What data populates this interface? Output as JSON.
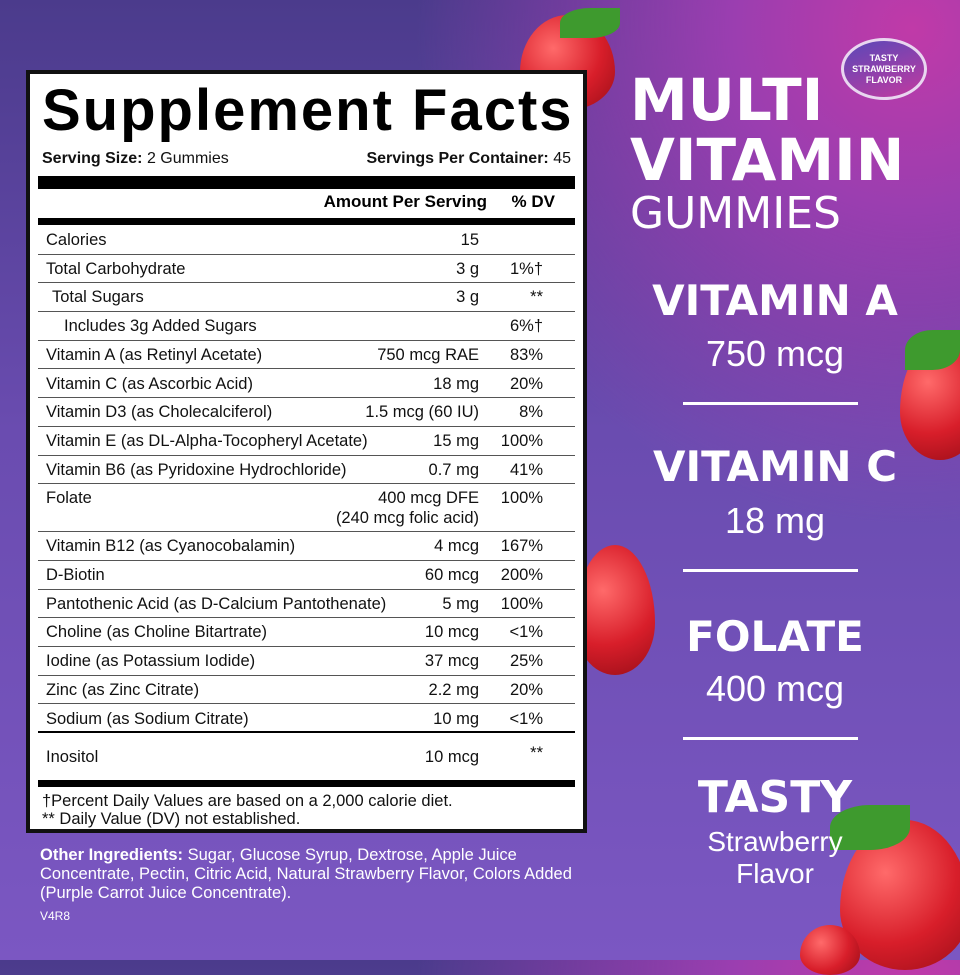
{
  "label": {
    "title": "Supplement Facts",
    "serving_size_label": "Serving Size:",
    "serving_size": "2 Gummies",
    "servings_label": "Servings Per Container:",
    "servings": "45",
    "col_amount": "Amount Per Serving",
    "col_dv": "% DV",
    "rows": [
      {
        "name": "Calories",
        "amount": "15",
        "dv": ""
      },
      {
        "name": "Total Carbohydrate",
        "amount": "3 g",
        "dv": "1%†"
      },
      {
        "name": "Total Sugars",
        "amount": "3 g",
        "dv": "**"
      },
      {
        "name": "Includes 3g Added Sugars",
        "amount": "",
        "dv": "6%†"
      },
      {
        "name": "Vitamin A (as Retinyl Acetate)",
        "amount": "750 mcg RAE",
        "dv": "83%"
      },
      {
        "name": "Vitamin C (as Ascorbic Acid)",
        "amount": "18 mg",
        "dv": "20%"
      },
      {
        "name": "Vitamin D3 (as Cholecalciferol)",
        "amount": "1.5 mcg (60 IU)",
        "dv": "8%"
      },
      {
        "name": "Vitamin E (as DL-Alpha-Tocopheryl Acetate)",
        "amount": "15 mg",
        "dv": "100%"
      },
      {
        "name": "Vitamin B6 (as Pyridoxine Hydrochloride)",
        "amount": "0.7 mg",
        "dv": "41%"
      },
      {
        "name": "Folate",
        "amount": "400 mcg DFE",
        "amount2": "(240 mcg folic acid)",
        "dv": "100%"
      },
      {
        "name": "Vitamin B12 (as Cyanocobalamin)",
        "amount": "4 mcg",
        "dv": "167%"
      },
      {
        "name": "D-Biotin",
        "amount": "60 mcg",
        "dv": "200%"
      },
      {
        "name": "Pantothenic Acid (as D-Calcium Pantothenate)",
        "amount": "5 mg",
        "dv": "100%"
      },
      {
        "name": "Choline (as Choline Bitartrate)",
        "amount": "10 mcg",
        "dv": "<1%"
      },
      {
        "name": "Iodine (as Potassium Iodide)",
        "amount": "37 mcg",
        "dv": "25%"
      },
      {
        "name": "Zinc (as Zinc Citrate)",
        "amount": "2.2 mg",
        "dv": "20%"
      },
      {
        "name": "Sodium (as Sodium Citrate)",
        "amount": "10 mg",
        "dv": "<1%"
      },
      {
        "name": "Inositol",
        "amount": "10 mcg",
        "dv": "**"
      }
    ],
    "footnote1": "†Percent Daily Values are based on a 2,000 calorie diet.",
    "footnote2": "** Daily Value (DV) not established."
  },
  "other_label": "Other Ingredients:",
  "other_text": " Sugar, Glucose Syrup, Dextrose, Apple Juice Concentrate, Pectin, Citric Acid, Natural Strawberry Flavor, Colors Added (Purple Carrot Juice Concentrate).",
  "code": "V4R8",
  "badge": [
    "TASTY",
    "STRAWBERRY",
    "FLAVOR"
  ],
  "headline": [
    "MULTI",
    "VITAMIN",
    "GUMMIES"
  ],
  "highlights": [
    {
      "name": "VITAMIN A",
      "value": "750 mcg"
    },
    {
      "name": "VITAMIN C",
      "value": "18 mg"
    },
    {
      "name": "FOLATE",
      "value": "400 mcg"
    }
  ],
  "tasty": {
    "title": "TASTY",
    "line1": "Strawberry",
    "line2": "Flavor"
  },
  "colors": {
    "background": "#6a4cb0",
    "accent": "#c03aa8",
    "strawberry": "#d81e2a"
  }
}
